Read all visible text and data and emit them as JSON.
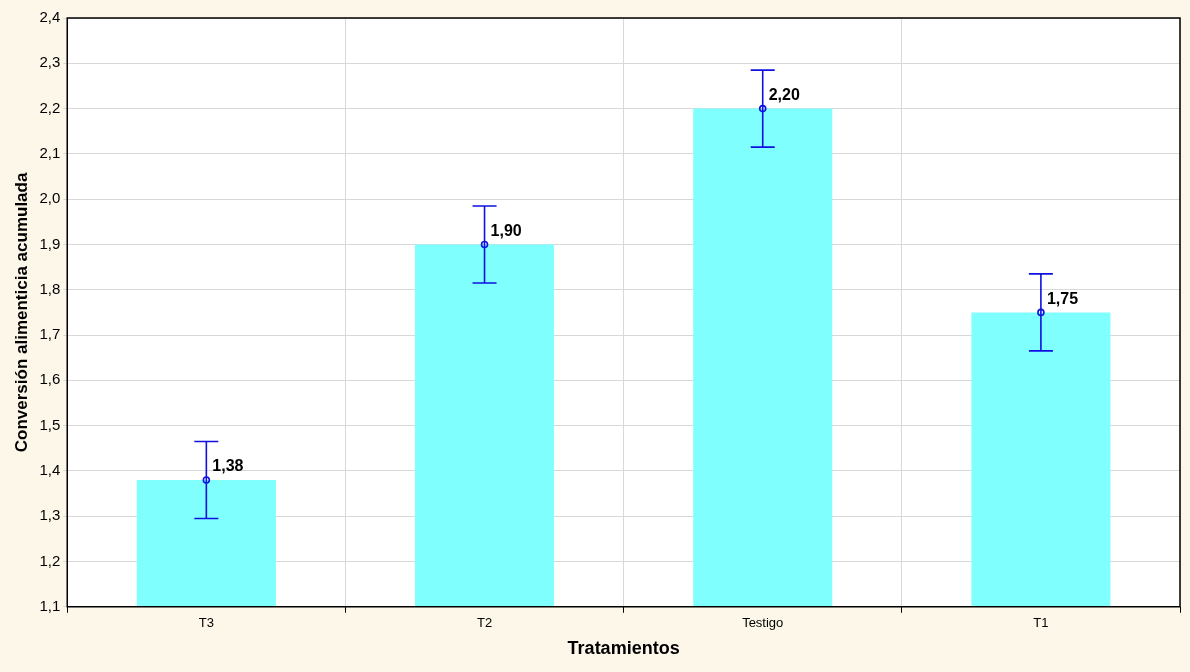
{
  "chart_data": {
    "type": "bar",
    "xlabel": "Tratamientos",
    "ylabel": "Conversión alimenticia acumulada",
    "categories": [
      "T3",
      "T2",
      "Testigo",
      "T1"
    ],
    "series": [
      {
        "color": "#80ffff",
        "values": [
          1.38,
          1.9,
          2.2,
          1.75
        ],
        "value_labels": [
          "1,38",
          "1,90",
          "2,20",
          "1,75"
        ]
      },
      {
        "type": "scatter",
        "color": "#1010e0",
        "x": [
          "T3",
          "T2",
          "Testigo",
          "T1"
        ],
        "values": [
          1.38,
          1.9,
          2.2,
          1.75
        ],
        "errors": [
          0.085,
          0.085,
          0.085,
          0.085
        ],
        "marker": "circle"
      }
    ],
    "ylim": [
      1.1,
      2.4
    ],
    "yticks": [
      {
        "value": 1.1,
        "label": "1,1"
      },
      {
        "value": 1.2,
        "label": "1,2"
      },
      {
        "value": 1.3,
        "label": "1,3"
      },
      {
        "value": 1.4,
        "label": "1,4"
      },
      {
        "value": 1.5,
        "label": "1,5"
      },
      {
        "value": 1.6,
        "label": "1,6"
      },
      {
        "value": 1.7,
        "label": "1,7"
      },
      {
        "value": 1.8,
        "label": "1,8"
      },
      {
        "value": 1.9,
        "label": "1,9"
      },
      {
        "value": 2.0,
        "label": "2,0"
      },
      {
        "value": 2.1,
        "label": "2,1"
      },
      {
        "value": 2.2,
        "label": "2,2"
      },
      {
        "value": 2.3,
        "label": "2,3"
      },
      {
        "value": 2.4,
        "label": "2,4"
      }
    ],
    "grid": true,
    "legend": false
  }
}
